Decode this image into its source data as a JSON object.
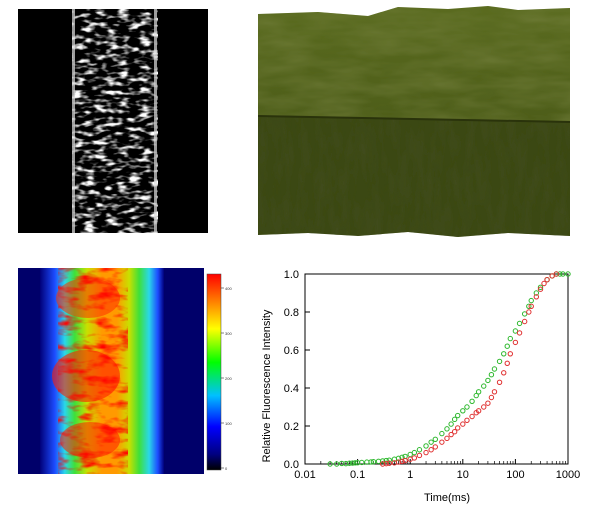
{
  "colorbar": {
    "ticks": [
      "400",
      "300",
      "200",
      "100",
      "0"
    ]
  },
  "chart_data": {
    "type": "scatter",
    "xlabel": "Time(ms)",
    "ylabel": "Relative Fluorescence Intensity",
    "x_scale": "log",
    "xlim": [
      0.01,
      1000
    ],
    "ylim": [
      0,
      1.0
    ],
    "xticks": [
      "0.01",
      "0.1",
      "1",
      "10",
      "100",
      "1000"
    ],
    "yticks": [
      "0.0",
      "0.2",
      "0.4",
      "0.6",
      "0.8",
      "1.0"
    ],
    "grid": false,
    "series": [
      {
        "color": "#2db82d",
        "points": [
          [
            0.03,
            0.0
          ],
          [
            0.04,
            0.0
          ],
          [
            0.05,
            0.003
          ],
          [
            0.06,
            0.002
          ],
          [
            0.07,
            0.004
          ],
          [
            0.08,
            0.005
          ],
          [
            0.09,
            0.006
          ],
          [
            0.1,
            0.007
          ],
          [
            0.12,
            0.008
          ],
          [
            0.15,
            0.01
          ],
          [
            0.18,
            0.011
          ],
          [
            0.2,
            0.012
          ],
          [
            0.25,
            0.014
          ],
          [
            0.3,
            0.016
          ],
          [
            0.35,
            0.018
          ],
          [
            0.4,
            0.02
          ],
          [
            0.5,
            0.025
          ],
          [
            0.6,
            0.03
          ],
          [
            0.7,
            0.035
          ],
          [
            0.8,
            0.04
          ],
          [
            1,
            0.05
          ],
          [
            1.2,
            0.06
          ],
          [
            1.5,
            0.075
          ],
          [
            2,
            0.095
          ],
          [
            2.5,
            0.115
          ],
          [
            3,
            0.13
          ],
          [
            4,
            0.16
          ],
          [
            5,
            0.185
          ],
          [
            6,
            0.21
          ],
          [
            7,
            0.235
          ],
          [
            8,
            0.255
          ],
          [
            10,
            0.28
          ],
          [
            12,
            0.3
          ],
          [
            15,
            0.33
          ],
          [
            18,
            0.36
          ],
          [
            20,
            0.38
          ],
          [
            25,
            0.41
          ],
          [
            30,
            0.44
          ],
          [
            35,
            0.47
          ],
          [
            40,
            0.5
          ],
          [
            50,
            0.54
          ],
          [
            60,
            0.58
          ],
          [
            70,
            0.62
          ],
          [
            80,
            0.66
          ],
          [
            100,
            0.7
          ],
          [
            120,
            0.74
          ],
          [
            150,
            0.79
          ],
          [
            180,
            0.83
          ],
          [
            200,
            0.86
          ],
          [
            250,
            0.9
          ],
          [
            300,
            0.93
          ],
          [
            400,
            0.97
          ],
          [
            500,
            0.99
          ],
          [
            600,
            1.0
          ],
          [
            700,
            1.0
          ],
          [
            800,
            1.0
          ],
          [
            1000,
            1.0
          ]
        ]
      },
      {
        "color": "#e03030",
        "points": [
          [
            0.3,
            0.0
          ],
          [
            0.35,
            0.002
          ],
          [
            0.4,
            0.004
          ],
          [
            0.5,
            0.006
          ],
          [
            0.6,
            0.01
          ],
          [
            0.7,
            0.014
          ],
          [
            0.8,
            0.018
          ],
          [
            1,
            0.025
          ],
          [
            1.2,
            0.032
          ],
          [
            1.5,
            0.045
          ],
          [
            2,
            0.06
          ],
          [
            2.5,
            0.075
          ],
          [
            3,
            0.09
          ],
          [
            4,
            0.115
          ],
          [
            5,
            0.135
          ],
          [
            6,
            0.155
          ],
          [
            7,
            0.17
          ],
          [
            8,
            0.19
          ],
          [
            10,
            0.21
          ],
          [
            12,
            0.23
          ],
          [
            15,
            0.25
          ],
          [
            18,
            0.27
          ],
          [
            20,
            0.28
          ],
          [
            25,
            0.3
          ],
          [
            30,
            0.32
          ],
          [
            35,
            0.35
          ],
          [
            40,
            0.38
          ],
          [
            50,
            0.43
          ],
          [
            60,
            0.48
          ],
          [
            70,
            0.53
          ],
          [
            80,
            0.58
          ],
          [
            100,
            0.64
          ],
          [
            120,
            0.69
          ],
          [
            150,
            0.75
          ],
          [
            180,
            0.8
          ],
          [
            200,
            0.83
          ],
          [
            250,
            0.88
          ],
          [
            300,
            0.92
          ],
          [
            350,
            0.95
          ],
          [
            400,
            0.97
          ],
          [
            500,
            0.99
          ],
          [
            600,
            1.0
          ]
        ]
      }
    ]
  }
}
